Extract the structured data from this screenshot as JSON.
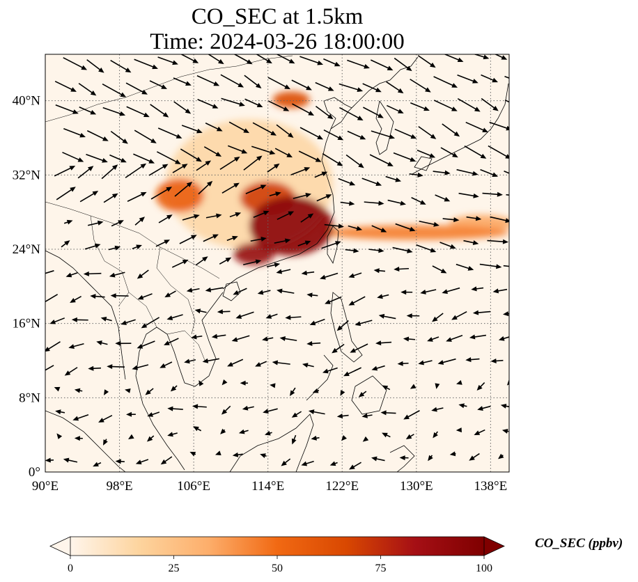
{
  "map": {
    "title_line1": "CO_SEC at 1.5km",
    "title_line2": "Time: 2024-03-26 18:00:00",
    "lon_range": [
      90,
      140
    ],
    "lat_range": [
      0,
      45
    ],
    "lon_ticks": [
      {
        "value": 90,
        "label": "90°E"
      },
      {
        "value": 98,
        "label": "98°E"
      },
      {
        "value": 106,
        "label": "106°E"
      },
      {
        "value": 114,
        "label": "114°E"
      },
      {
        "value": 122,
        "label": "122°E"
      },
      {
        "value": 130,
        "label": "130°E"
      },
      {
        "value": 138,
        "label": "138°E"
      }
    ],
    "lat_ticks": [
      {
        "value": 0,
        "label": "0°"
      },
      {
        "value": 8,
        "label": "8°N"
      },
      {
        "value": 16,
        "label": "16°N"
      },
      {
        "value": 24,
        "label": "24°N"
      },
      {
        "value": 32,
        "label": "32°N"
      },
      {
        "value": 40,
        "label": "40°N"
      }
    ],
    "gridlines": "dotted",
    "plumes": [
      {
        "name": "south-china-core",
        "lon": 116.5,
        "lat": 26.5,
        "r_lon": 4.5,
        "r_lat": 3.2,
        "value": 95
      },
      {
        "name": "guangdong-coast",
        "lon": 112.5,
        "lat": 23.5,
        "r_lon": 2.2,
        "r_lat": 1.2,
        "value": 90
      },
      {
        "name": "hunan-plume",
        "lon": 114.0,
        "lat": 29.5,
        "r_lon": 3.0,
        "r_lat": 1.8,
        "value": 70
      },
      {
        "name": "sichuan-plume",
        "lon": 104.5,
        "lat": 29.8,
        "r_lon": 2.6,
        "r_lat": 1.8,
        "value": 55
      },
      {
        "name": "beijing-plume",
        "lon": 116.5,
        "lat": 40.1,
        "r_lon": 2.0,
        "r_lat": 0.9,
        "value": 65
      },
      {
        "name": "china-haze",
        "lon": 112.0,
        "lat": 31.0,
        "r_lon": 9.0,
        "r_lat": 7.0,
        "value": 15
      },
      {
        "name": "pacific-band",
        "lon": 130.0,
        "lat": 25.8,
        "r_lon": 10.0,
        "r_lat": 0.8,
        "value": 45
      },
      {
        "name": "pacific-band-east",
        "lon": 137.0,
        "lat": 26.8,
        "r_lon": 3.5,
        "r_lat": 0.9,
        "value": 35
      }
    ]
  },
  "colorbar": {
    "label": "CO_SEC (ppbv)",
    "min": 0,
    "max": 100,
    "ticks": [
      {
        "value": 0,
        "label": "0"
      },
      {
        "value": 25,
        "label": "25"
      },
      {
        "value": 50,
        "label": "50"
      },
      {
        "value": 75,
        "label": "75"
      },
      {
        "value": 100,
        "label": "100"
      }
    ],
    "colors": [
      "#fff5eb",
      "#fdd49e",
      "#fdae6b",
      "#f16913",
      "#d94801",
      "#a50f15",
      "#7f0000"
    ]
  }
}
